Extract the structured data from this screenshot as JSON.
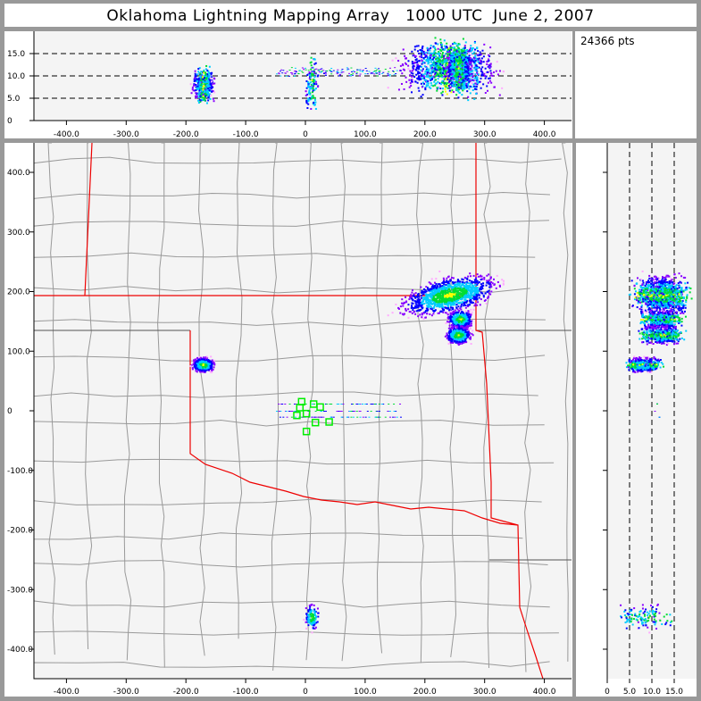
{
  "title": "Oklahoma Lightning Mapping Array   1000 UTC  June 2, 2007",
  "point_count": "24366 pts",
  "chart_data": {
    "type": "scatter",
    "title": "Oklahoma Lightning Mapping Array   1000 UTC  June 2, 2007",
    "panels": [
      {
        "name": "altitude-vs-east-west",
        "x_ticks": [
          "-400.0",
          "-300.0",
          "-200.0",
          "-100.0",
          "0",
          "100.0",
          "200.0",
          "300.0",
          "400.0"
        ],
        "y_ticks": [
          "0",
          "5.0",
          "10.0",
          "15.0"
        ],
        "xlim": [
          -455,
          445
        ],
        "ylim": [
          0,
          20
        ],
        "dashed_gridlines_y": [
          5,
          10,
          15
        ]
      },
      {
        "name": "plan-view-map",
        "x_ticks": [
          "-400.0",
          "-300.0",
          "-200.0",
          "-100.0",
          "0",
          "100.0",
          "200.0",
          "300.0",
          "400.0"
        ],
        "y_ticks": [
          "400.0",
          "300.0",
          "200.0",
          "100.0",
          "0",
          "-100.0",
          "-200.0",
          "-300.0",
          "-400.0"
        ],
        "xlim": [
          -455,
          445
        ],
        "ylim": [
          -449,
          449
        ]
      },
      {
        "name": "north-south-vs-altitude",
        "x_ticks": [
          "0",
          "5.0",
          "10.0",
          "15.0"
        ],
        "xlim": [
          0,
          20
        ],
        "ylim": [
          -449,
          449
        ],
        "dashed_gridlines_x": [
          5,
          10,
          15
        ]
      }
    ],
    "stations_km": [
      [
        -7,
        16
      ],
      [
        -10,
        6
      ],
      [
        13,
        12
      ],
      [
        24,
        7
      ],
      [
        -15,
        -7
      ],
      [
        1,
        -4
      ],
      [
        16,
        -19
      ],
      [
        39,
        -18
      ],
      [
        1,
        -34
      ]
    ],
    "colors": {
      "low": "#ffaaff",
      "mid1": "#8800ff",
      "mid2": "#0000ff",
      "mid3": "#00ccff",
      "high1": "#00dd33",
      "high2": "#ffff00",
      "max": "#ff0000",
      "state_border": "#ee0000",
      "county": "#999999",
      "background": "#f4f4f4"
    }
  }
}
